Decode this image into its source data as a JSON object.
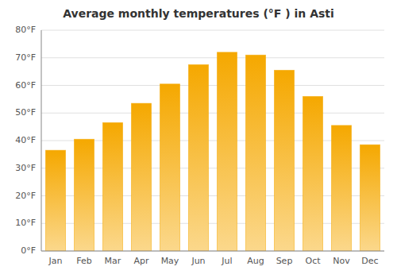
{
  "chart_data": {
    "type": "bar",
    "title": "Average monthly temperatures (°F ) in Asti",
    "categories": [
      "Jan",
      "Feb",
      "Mar",
      "Apr",
      "May",
      "Jun",
      "Jul",
      "Aug",
      "Sep",
      "Oct",
      "Nov",
      "Dec"
    ],
    "values": [
      36.5,
      40.5,
      46.5,
      53.5,
      60.5,
      67.5,
      72,
      71,
      65.5,
      56,
      45.5,
      38.5
    ],
    "color": "#F5A800",
    "ylim": [
      0,
      80
    ],
    "yticks": [
      {
        "value": 0,
        "label": "0°F"
      },
      {
        "value": 10,
        "label": "10°F"
      },
      {
        "value": 20,
        "label": "20°F"
      },
      {
        "value": 30,
        "label": "30°F"
      },
      {
        "value": 40,
        "label": "40°F"
      },
      {
        "value": 50,
        "label": "50°F"
      },
      {
        "value": 60,
        "label": "60°F"
      },
      {
        "value": 70,
        "label": "70°F"
      },
      {
        "value": 80,
        "label": "80°F"
      }
    ],
    "grid": true
  }
}
